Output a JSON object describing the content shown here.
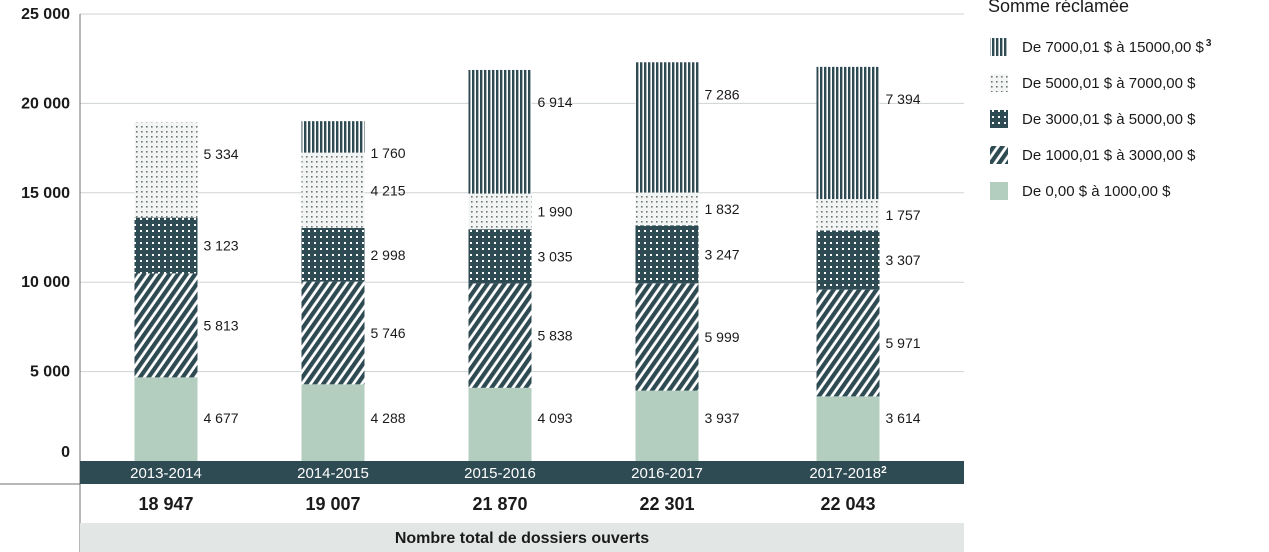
{
  "chart_data": {
    "type": "bar",
    "stacked": true,
    "categories": [
      "2013-2014",
      "2014-2015",
      "2015-2016",
      "2016-2017",
      "2017-2018"
    ],
    "category_superscripts": [
      "",
      "",
      "",
      "",
      "2"
    ],
    "totals": [
      "18 947",
      "19 007",
      "21 870",
      "22 301",
      "22 043"
    ],
    "footer_label": "Nombre total de dossiers ouverts",
    "legend_title": "Somme réclamée",
    "yticks": [
      "0",
      "5 000",
      "10 000",
      "15 000",
      "20 000",
      "25 000"
    ],
    "ylim": [
      0,
      25000
    ],
    "grid": true,
    "legend_position": "right",
    "series": [
      {
        "name": "De 0,00 $ à 1000,00 $",
        "pattern": "solid",
        "color": "#b3cdbf",
        "values": [
          4677,
          4288,
          4093,
          3937,
          3614
        ],
        "labels": [
          "4 677",
          "4 288",
          "4 093",
          "3 937",
          "3 614"
        ]
      },
      {
        "name": "De 1000,01 $ à 3000,00 $",
        "pattern": "diagonal",
        "color": "#2e4a52",
        "values": [
          5813,
          5746,
          5838,
          5999,
          5971
        ],
        "labels": [
          "5 813",
          "5 746",
          "5 838",
          "5 999",
          "5 971"
        ]
      },
      {
        "name": "De 3000,01 $ à 5000,00 $",
        "pattern": "dots",
        "color": "#2e4a52",
        "values": [
          3123,
          2998,
          3035,
          3247,
          3307
        ],
        "labels": [
          "3 123",
          "2 998",
          "3 035",
          "3 247",
          "3 307"
        ]
      },
      {
        "name": "De 5000,01 $ à 7000,00 $",
        "pattern": "fine-dots",
        "color": "#d7dcda",
        "values": [
          5334,
          4215,
          1990,
          1832,
          1757
        ],
        "labels": [
          "5 334",
          "4 215",
          "1 990",
          "1 832",
          "1 757"
        ]
      },
      {
        "name": "De 7000,01 $ à 15000,00 $",
        "legend_superscript": "3",
        "pattern": "vertical",
        "color": "#2e4a52",
        "values": [
          0,
          1760,
          6914,
          7286,
          7394
        ],
        "labels": [
          "",
          "1 760",
          "6 914",
          "7 286",
          "7 394"
        ]
      }
    ],
    "legend_order": [
      4,
      3,
      2,
      1,
      0
    ]
  }
}
